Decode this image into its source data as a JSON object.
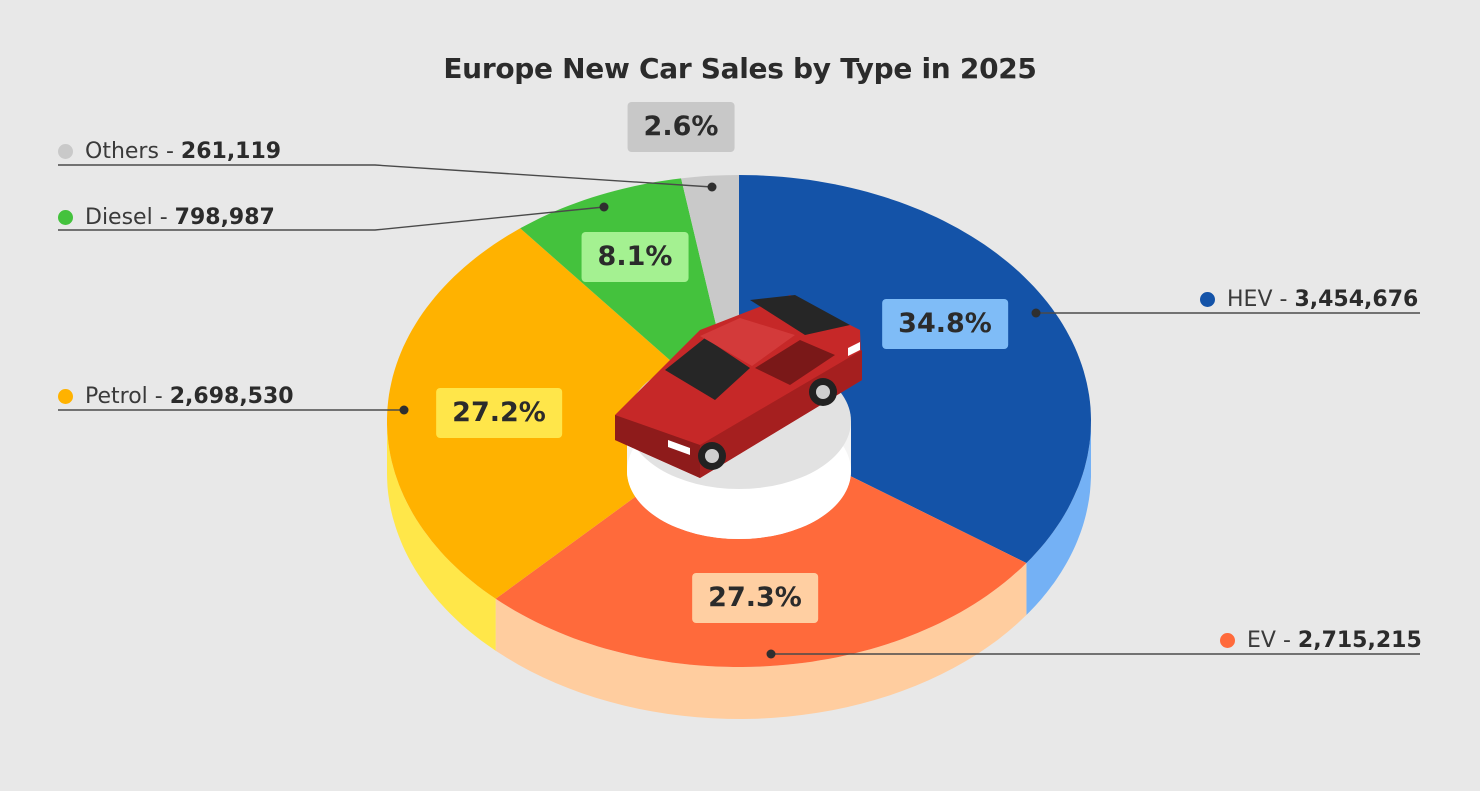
{
  "chart_data": {
    "type": "pie",
    "title": "Europe New Car Sales by Type in 2025",
    "slices": [
      {
        "name": "HEV",
        "value": 3454676,
        "percent": 34.8,
        "percent_label": "34.8%",
        "value_label": "3,454,676",
        "color": "#1453a8",
        "side_color": "#74b1f5",
        "label_bg": "#7fbcf7",
        "dot_color": "#1453a8"
      },
      {
        "name": "EV",
        "value": 2715215,
        "percent": 27.3,
        "percent_label": "27.3%",
        "value_label": "2,715,215",
        "color": "#ff6a3b",
        "side_color": "#ffcd9f",
        "label_bg": "#ffcfa2",
        "dot_color": "#ff6a3b"
      },
      {
        "name": "Petrol",
        "value": 2698530,
        "percent": 27.2,
        "percent_label": "27.2%",
        "value_label": "2,698,530",
        "color": "#ffb200",
        "side_color": "#ffe749",
        "label_bg": "#ffe64a",
        "dot_color": "#ffb200"
      },
      {
        "name": "Diesel",
        "value": 798987,
        "percent": 8.1,
        "percent_label": "8.1%",
        "value_label": "798,987",
        "color": "#44c23d",
        "side_color": "#9edf86",
        "label_bg": "#a4f191",
        "dot_color": "#44c23d"
      },
      {
        "name": "Others",
        "value": 261119,
        "percent": 2.6,
        "percent_label": "2.6%",
        "value_label": "261,119",
        "color": "#c9c9c9",
        "side_color": "#b5b5b5",
        "label_bg": "#c8c8c8",
        "dot_color": "#c9c9c9"
      }
    ],
    "legend_separator": "-",
    "center_image": "red-car-icon"
  }
}
